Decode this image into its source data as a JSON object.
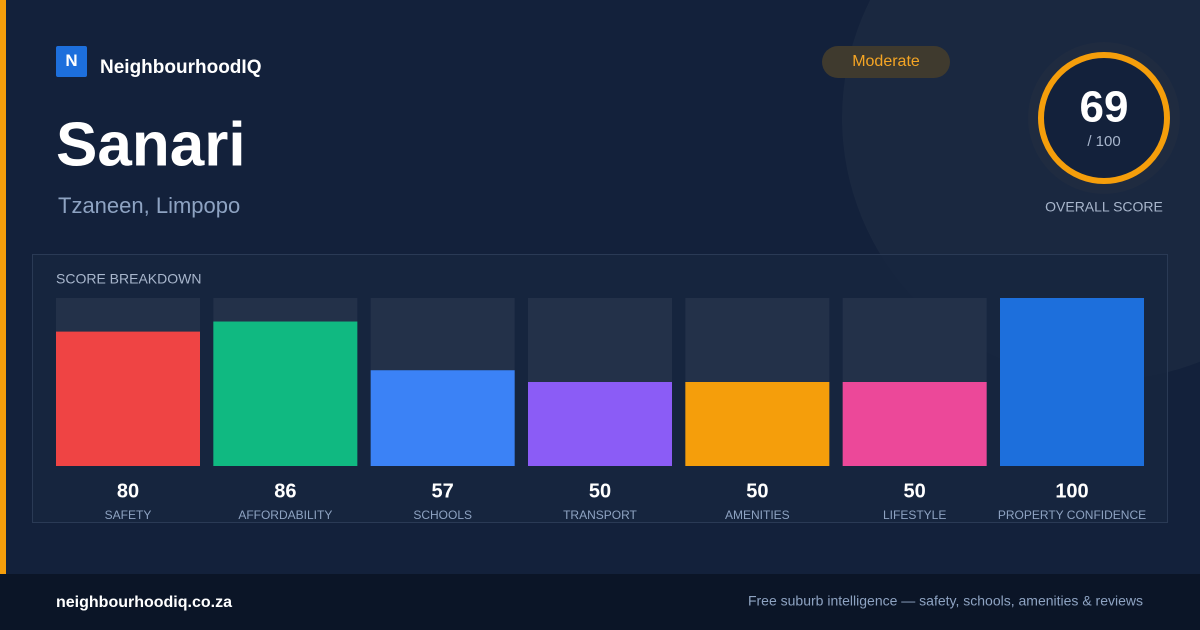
{
  "brand": {
    "logo": "N",
    "name": "NeighbourhoodIQ"
  },
  "suburb": {
    "name": "Sanari",
    "location": "Tzaneen, Limpopo"
  },
  "rating": "Moderate",
  "overall": {
    "score": 69,
    "out_of": "/ 100",
    "label": "OVERALL SCORE"
  },
  "chart_data": {
    "type": "bar",
    "title": "SCORE BREAKDOWN",
    "categories": [
      "SAFETY",
      "AFFORDABILITY",
      "SCHOOLS",
      "TRANSPORT",
      "AMENITIES",
      "LIFESTYLE",
      "PROPERTY CONFIDENCE"
    ],
    "values": [
      80,
      86,
      57,
      50,
      50,
      50,
      100
    ],
    "colors": [
      "#ef4444",
      "#10b981",
      "#3b82f6",
      "#8b5cf6",
      "#f59e0b",
      "#ec4899",
      "#1d6fdc"
    ],
    "ylim": [
      0,
      100
    ]
  },
  "footer": {
    "site": "neighbourhoodiq.co.za",
    "tagline": "Free suburb intelligence — safety, schools, amenities & reviews"
  }
}
